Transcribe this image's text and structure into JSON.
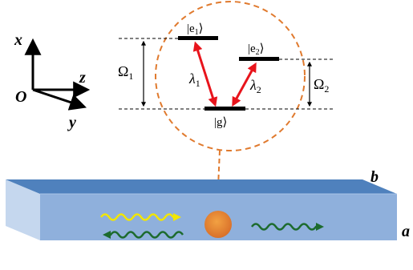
{
  "axes": {
    "x_label": "x",
    "y_label": "y",
    "z_label": "z",
    "origin_label": "O"
  },
  "levels": {
    "e1": {
      "base": "|e",
      "sub": "1",
      "close": "⟩"
    },
    "e2": {
      "base": "|e",
      "sub": "2",
      "close": "⟩"
    },
    "g": {
      "base": "|g",
      "close": "⟩"
    }
  },
  "detunings": {
    "omega1": {
      "base": "Ω",
      "sub": "1"
    },
    "omega2": {
      "base": "Ω",
      "sub": "2"
    }
  },
  "transitions": {
    "lambda1": {
      "base": "λ",
      "sub": "1"
    },
    "lambda2": {
      "base": "λ",
      "sub": "2"
    }
  },
  "waveguide": {
    "top_face_label": "b",
    "front_face_label": "a"
  },
  "colors": {
    "transition_arrow": "#e8141c",
    "dashed_circle": "#e07a2e",
    "waveguide_top": "#4f81bd",
    "waveguide_front": "#8fb0dc",
    "waveguide_side": "#c5d7ee",
    "forward_wave_yellow": "#f2e600",
    "wave_green": "#1d6b2e",
    "atom_fill": "#e58a2e"
  }
}
